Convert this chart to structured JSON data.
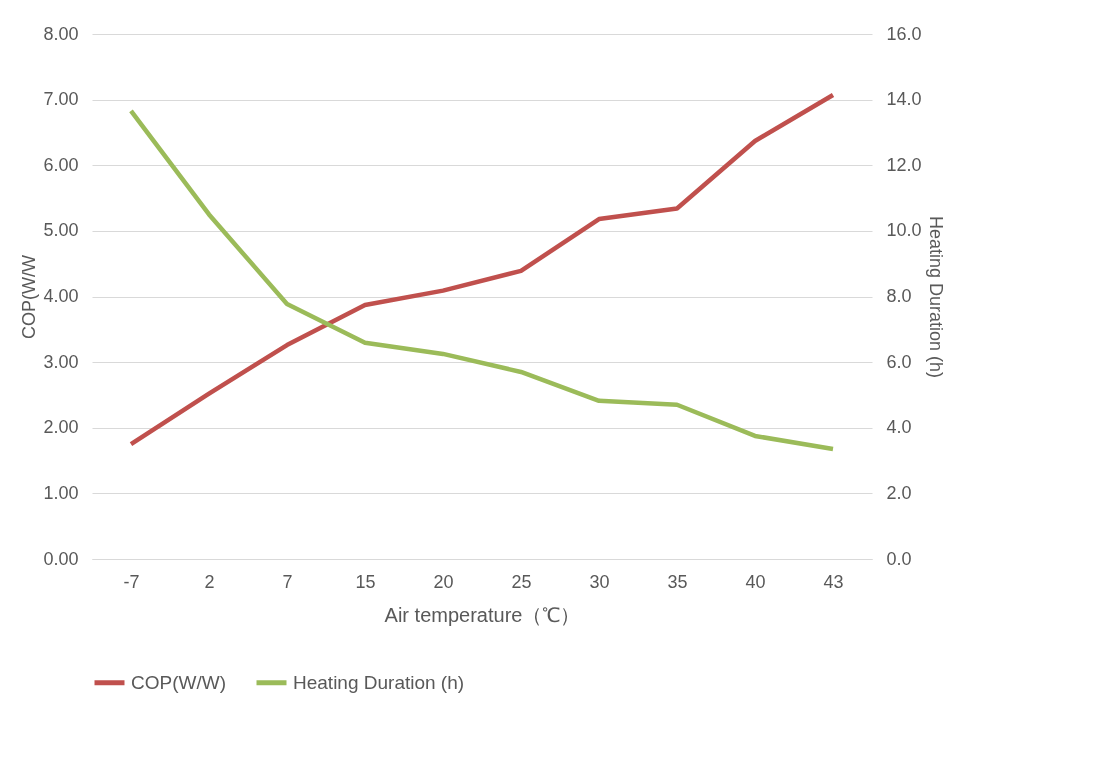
{
  "chart_data": {
    "type": "line",
    "xlabel": "Air temperature（℃）",
    "ylabel": "COP(W/W",
    "y2label": "Heating Duration (h)",
    "categories": [
      "-7",
      "2",
      "7",
      "15",
      "20",
      "25",
      "30",
      "35",
      "40",
      "43"
    ],
    "series": [
      {
        "name": "COP(W/W)",
        "color": "#c0504d",
        "values": [
          1.75,
          2.52,
          3.26,
          3.87,
          4.09,
          4.39,
          5.18,
          5.34,
          6.37,
          7.07
        ]
      },
      {
        "name": "Heating Duration (h)",
        "color": "#9bbb59",
        "axis": "y2",
        "values": [
          13.66,
          10.5,
          7.77,
          6.59,
          6.25,
          5.7,
          4.82,
          4.7,
          3.75,
          3.35
        ]
      }
    ],
    "ylim": [
      0,
      8
    ],
    "yticks": [
      {
        "value": 0,
        "label": "0.00"
      },
      {
        "value": 1,
        "label": "1.00"
      },
      {
        "value": 2,
        "label": "2.00"
      },
      {
        "value": 3,
        "label": "3.00"
      },
      {
        "value": 4,
        "label": "4.00"
      },
      {
        "value": 5,
        "label": "5.00"
      },
      {
        "value": 6,
        "label": "6.00"
      },
      {
        "value": 7,
        "label": "7.00"
      },
      {
        "value": 8,
        "label": "8.00"
      }
    ],
    "y2lim": [
      0,
      16
    ],
    "y2ticks": [
      {
        "value": 0,
        "label": "0.0"
      },
      {
        "value": 2,
        "label": "2.0"
      },
      {
        "value": 4,
        "label": "4.0"
      },
      {
        "value": 6,
        "label": "6.0"
      },
      {
        "value": 8,
        "label": "8.0"
      },
      {
        "value": 10,
        "label": "10.0"
      },
      {
        "value": 12,
        "label": "12.0"
      },
      {
        "value": 14,
        "label": "14.0"
      },
      {
        "value": 16,
        "label": "16.0"
      }
    ],
    "grid": "y",
    "legend": "bottom",
    "marker": "none",
    "line_style": "solid"
  }
}
